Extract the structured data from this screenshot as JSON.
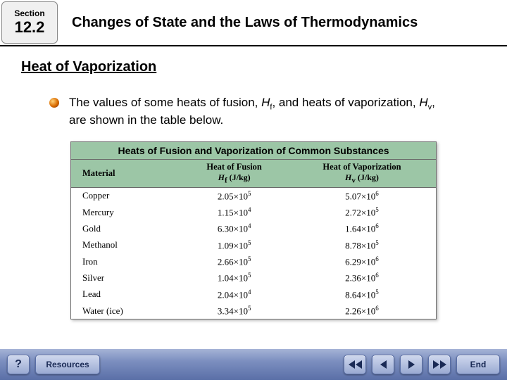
{
  "header": {
    "section_label": "Section",
    "section_number": "12.2",
    "title": "Changes of State and the Laws of Thermodynamics"
  },
  "subheading": "Heat of Vaporization",
  "body": {
    "pre": "The values of some heats of fusion, ",
    "hf": "H",
    "hf_sub": "f",
    "mid": ", and heats of vaporization, ",
    "hv": "H",
    "hv_sub": "v",
    "post": ", are shown in the table below."
  },
  "table": {
    "title": "Heats of Fusion and Vaporization of Common Substances",
    "col_material": "Material",
    "col_hf_label": "Heat of Fusion",
    "col_hf_unit_sym": "H",
    "col_hf_unit_sub": "f",
    "col_hf_unit_paren": " (J/kg)",
    "col_hv_label": "Heat of Vaporization",
    "col_hv_unit_sym": "H",
    "col_hv_unit_sub": "v",
    "col_hv_unit_paren": " (J/kg)",
    "rows": [
      {
        "material": "Copper",
        "hf_b": "2.05",
        "hf_e": "5",
        "hv_b": "5.07",
        "hv_e": "6"
      },
      {
        "material": "Mercury",
        "hf_b": "1.15",
        "hf_e": "4",
        "hv_b": "2.72",
        "hv_e": "5"
      },
      {
        "material": "Gold",
        "hf_b": "6.30",
        "hf_e": "4",
        "hv_b": "1.64",
        "hv_e": "6"
      },
      {
        "material": "Methanol",
        "hf_b": "1.09",
        "hf_e": "5",
        "hv_b": "8.78",
        "hv_e": "5"
      },
      {
        "material": "Iron",
        "hf_b": "2.66",
        "hf_e": "5",
        "hv_b": "6.29",
        "hv_e": "6"
      },
      {
        "material": "Silver",
        "hf_b": "1.04",
        "hf_e": "5",
        "hv_b": "2.36",
        "hv_e": "6"
      },
      {
        "material": "Lead",
        "hf_b": "2.04",
        "hf_e": "4",
        "hv_b": "8.64",
        "hv_e": "5"
      },
      {
        "material": "Water (ice)",
        "hf_b": "3.34",
        "hf_e": "5",
        "hv_b": "2.26",
        "hv_e": "6"
      }
    ]
  },
  "footer": {
    "help": "?",
    "resources": "Resources",
    "end": "End"
  }
}
